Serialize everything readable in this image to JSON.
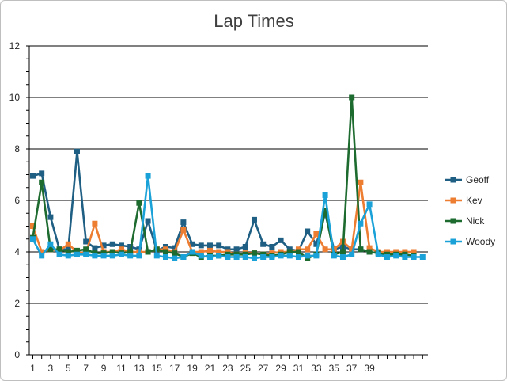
{
  "chart_data": {
    "type": "line",
    "title": "Lap Times",
    "xlabel": "",
    "ylabel": "",
    "ylim": [
      0,
      12
    ],
    "y_ticks": [
      "0",
      "2",
      "4",
      "6",
      "8",
      "10",
      "12"
    ],
    "x_tick_labels": [
      "1",
      "3",
      "5",
      "7",
      "9",
      "11",
      "13",
      "15",
      "17",
      "19",
      "21",
      "23",
      "25",
      "27",
      "29",
      "31",
      "33",
      "35",
      "37",
      "39"
    ],
    "x": [
      1,
      2,
      3,
      4,
      5,
      6,
      7,
      8,
      9,
      10,
      11,
      12,
      13,
      14,
      15,
      16,
      17,
      18,
      19,
      20,
      21,
      22,
      23,
      24,
      25,
      26,
      27,
      28,
      29,
      30,
      31,
      32,
      33,
      34,
      35,
      36,
      37,
      38,
      39,
      40,
      41,
      42,
      43,
      44,
      45
    ],
    "grid": true,
    "legend_position": "right",
    "series": [
      {
        "name": "Geoff",
        "color": "#1f5f84",
        "values": [
          6.95,
          7.05,
          5.35,
          4.1,
          4.1,
          7.9,
          4.4,
          4.15,
          4.25,
          4.3,
          4.25,
          4.2,
          4.1,
          5.2,
          4.05,
          4.2,
          4.15,
          5.15,
          4.3,
          4.25,
          4.25,
          4.25,
          4.1,
          4.1,
          4.2,
          5.25,
          4.3,
          4.2,
          4.45,
          4.1,
          4.05,
          4.8,
          4.3,
          5.5,
          4.1,
          4.2,
          4.1,
          4.1,
          4.0,
          null,
          null,
          null,
          null,
          null,
          null
        ]
      },
      {
        "name": "Kev",
        "color": "#ed7d31",
        "values": [
          5.0,
          4.0,
          4.1,
          4.05,
          4.3,
          4.0,
          3.95,
          5.1,
          4.0,
          4.0,
          4.1,
          4.0,
          4.0,
          4.0,
          4.1,
          4.1,
          4.0,
          4.85,
          4.0,
          4.0,
          4.05,
          4.0,
          4.0,
          3.9,
          3.95,
          3.95,
          3.9,
          3.95,
          4.0,
          4.0,
          4.1,
          4.1,
          4.7,
          4.1,
          4.1,
          4.4,
          4.1,
          6.7,
          4.15,
          4.0,
          4.0,
          4.0,
          4.0,
          4.0,
          null
        ]
      },
      {
        "name": "Nick",
        "color": "#1e6b30",
        "values": [
          4.55,
          6.7,
          4.1,
          4.1,
          4.0,
          4.05,
          4.1,
          3.95,
          3.95,
          4.0,
          3.95,
          4.0,
          5.9,
          4.0,
          4.1,
          4.0,
          3.95,
          3.8,
          3.95,
          3.8,
          3.85,
          3.85,
          3.9,
          3.9,
          3.9,
          3.95,
          3.9,
          3.85,
          3.9,
          4.0,
          4.0,
          3.75,
          3.9,
          5.6,
          3.9,
          4.0,
          10.0,
          4.1,
          4.0,
          3.95,
          3.9,
          3.9,
          3.9,
          3.85,
          null
        ]
      },
      {
        "name": "Woody",
        "color": "#1aa2d8",
        "values": [
          4.5,
          3.85,
          4.3,
          3.9,
          3.85,
          3.9,
          3.9,
          3.85,
          3.85,
          3.85,
          3.9,
          3.85,
          3.85,
          6.95,
          3.85,
          3.8,
          3.75,
          3.8,
          4.0,
          3.85,
          3.8,
          3.85,
          3.8,
          3.8,
          3.8,
          3.75,
          3.8,
          3.8,
          3.85,
          3.85,
          3.8,
          3.85,
          3.85,
          6.2,
          3.85,
          3.8,
          3.9,
          5.1,
          5.85,
          3.9,
          3.8,
          3.85,
          3.8,
          3.8,
          3.8
        ]
      }
    ]
  }
}
